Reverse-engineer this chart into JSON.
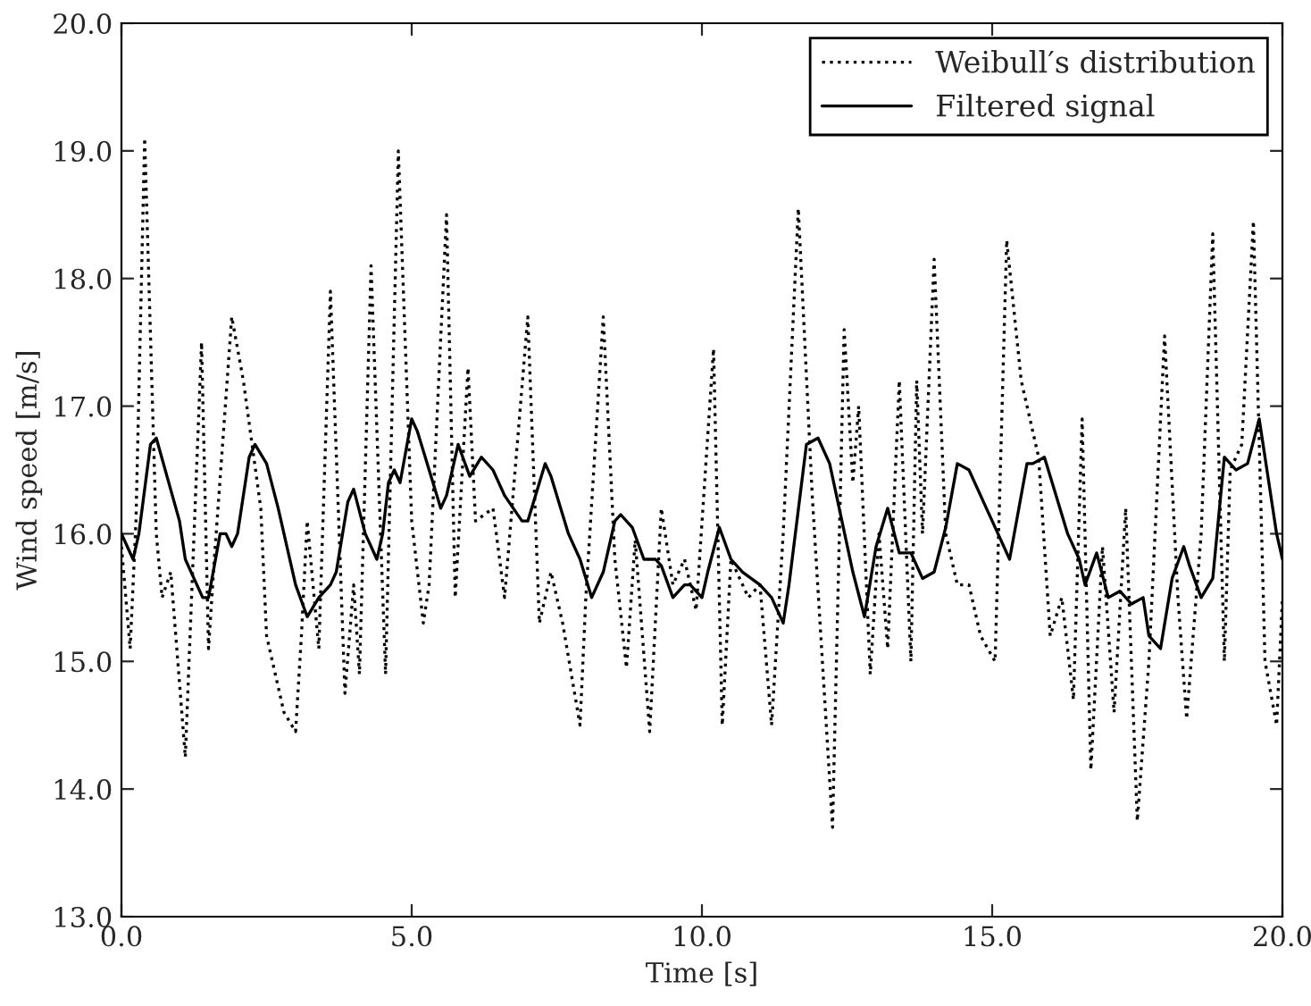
{
  "chart_data": {
    "type": "line",
    "xlabel": "Time [s]",
    "ylabel": "Wind speed [m/s]",
    "xlim": [
      0,
      20
    ],
    "ylim": [
      13,
      20
    ],
    "xticks": [
      {
        "value": 0,
        "label": "0.0"
      },
      {
        "value": 5,
        "label": "5.0"
      },
      {
        "value": 10,
        "label": "10.0"
      },
      {
        "value": 15,
        "label": "15.0"
      },
      {
        "value": 20,
        "label": "20.0"
      }
    ],
    "yticks": [
      {
        "value": 13,
        "label": "13.0"
      },
      {
        "value": 14,
        "label": "14.0"
      },
      {
        "value": 15,
        "label": "15.0"
      },
      {
        "value": 16,
        "label": "16.0"
      },
      {
        "value": 17,
        "label": "17.0"
      },
      {
        "value": 18,
        "label": "18.0"
      },
      {
        "value": 19,
        "label": "19.0"
      },
      {
        "value": 20,
        "label": "20.0"
      }
    ],
    "grid": false,
    "legend": "top right",
    "marker": "none",
    "series": [
      {
        "name": "Weibull′s distribution",
        "color": "#000000",
        "line_style": "dotted",
        "x": [
          0.0,
          0.15,
          0.25,
          0.4,
          0.6,
          0.7,
          0.85,
          1.1,
          1.38,
          1.5,
          1.6,
          1.9,
          2.1,
          2.4,
          2.5,
          2.8,
          3.0,
          3.1,
          3.2,
          3.4,
          3.6,
          3.85,
          4.0,
          4.1,
          4.3,
          4.55,
          4.77,
          5.0,
          5.2,
          5.3,
          5.6,
          5.75,
          5.97,
          6.1,
          6.4,
          6.6,
          7.0,
          7.2,
          7.4,
          7.6,
          7.9,
          8.0,
          8.3,
          8.5,
          8.7,
          8.85,
          9.1,
          9.3,
          9.5,
          9.7,
          9.9,
          10.2,
          10.35,
          10.5,
          10.8,
          11.0,
          11.2,
          11.4,
          11.66,
          11.9,
          12.25,
          12.45,
          12.6,
          12.7,
          12.9,
          13.05,
          13.2,
          13.4,
          13.6,
          13.7,
          13.8,
          14.0,
          14.2,
          14.4,
          14.6,
          14.8,
          15.05,
          15.25,
          15.5,
          15.8,
          16.0,
          16.2,
          16.4,
          16.55,
          16.7,
          16.9,
          17.1,
          17.3,
          17.5,
          17.7,
          17.97,
          18.2,
          18.35,
          18.6,
          18.8,
          19.0,
          19.1,
          19.3,
          19.5,
          19.7,
          19.9,
          20.0
        ],
        "values": [
          15.9,
          15.1,
          16.1,
          19.1,
          16.0,
          15.5,
          15.7,
          14.25,
          17.5,
          15.1,
          15.8,
          17.7,
          17.2,
          16.2,
          15.2,
          14.6,
          14.45,
          15.2,
          16.1,
          15.1,
          17.9,
          14.75,
          15.6,
          14.9,
          18.1,
          14.9,
          19.0,
          16.1,
          15.3,
          15.6,
          18.5,
          15.5,
          17.3,
          16.1,
          16.2,
          15.5,
          17.7,
          15.3,
          15.7,
          15.3,
          14.5,
          15.5,
          17.7,
          15.8,
          14.95,
          15.95,
          14.45,
          16.2,
          15.6,
          15.8,
          15.4,
          17.45,
          14.5,
          15.8,
          15.5,
          15.6,
          14.5,
          16.0,
          18.55,
          16.3,
          13.7,
          17.6,
          16.4,
          17.0,
          14.9,
          16.0,
          15.1,
          17.2,
          15.0,
          17.2,
          16.0,
          18.15,
          16.0,
          15.6,
          15.6,
          15.2,
          15.0,
          18.3,
          17.2,
          16.6,
          15.2,
          15.5,
          14.7,
          16.9,
          14.15,
          15.9,
          14.6,
          16.2,
          13.75,
          15.0,
          17.55,
          15.5,
          14.55,
          16.0,
          18.35,
          15.0,
          16.5,
          16.7,
          18.45,
          15.0,
          14.5,
          15.5
        ]
      },
      {
        "name": "Filtered signal",
        "color": "#000000",
        "line_style": "solid",
        "x": [
          0.0,
          0.2,
          0.3,
          0.5,
          0.6,
          1.0,
          1.1,
          1.4,
          1.5,
          1.7,
          1.8,
          1.9,
          2.0,
          2.2,
          2.3,
          2.5,
          2.7,
          3.0,
          3.2,
          3.4,
          3.6,
          3.7,
          3.9,
          4.0,
          4.2,
          4.4,
          4.5,
          4.6,
          4.7,
          4.8,
          5.0,
          5.1,
          5.3,
          5.5,
          5.6,
          5.8,
          6.0,
          6.2,
          6.4,
          6.6,
          6.9,
          7.0,
          7.3,
          7.4,
          7.7,
          7.9,
          8.1,
          8.3,
          8.5,
          8.6,
          8.8,
          9.0,
          9.2,
          9.3,
          9.5,
          9.7,
          9.8,
          10.0,
          10.1,
          10.3,
          10.5,
          10.7,
          11.0,
          11.2,
          11.4,
          11.5,
          11.8,
          12.0,
          12.2,
          12.6,
          12.8,
          13.0,
          13.2,
          13.4,
          13.6,
          13.8,
          14.0,
          14.2,
          14.4,
          14.6,
          14.9,
          15.1,
          15.3,
          15.5,
          15.6,
          15.7,
          15.9,
          16.1,
          16.3,
          16.5,
          16.6,
          16.8,
          17.0,
          17.2,
          17.4,
          17.6,
          17.7,
          17.9,
          18.1,
          18.3,
          18.4,
          18.6,
          18.8,
          19.0,
          19.2,
          19.4,
          19.6,
          19.9,
          20.0
        ],
        "values": [
          16.0,
          15.8,
          16.0,
          16.7,
          16.75,
          16.1,
          15.8,
          15.5,
          15.5,
          16.0,
          16.0,
          15.9,
          16.0,
          16.6,
          16.7,
          16.55,
          16.2,
          15.6,
          15.35,
          15.5,
          15.6,
          15.7,
          16.25,
          16.35,
          16.0,
          15.8,
          16.0,
          16.4,
          16.5,
          16.4,
          16.9,
          16.8,
          16.5,
          16.2,
          16.3,
          16.7,
          16.45,
          16.6,
          16.5,
          16.3,
          16.1,
          16.1,
          16.55,
          16.45,
          16.0,
          15.8,
          15.5,
          15.7,
          16.1,
          16.15,
          16.05,
          15.8,
          15.8,
          15.75,
          15.5,
          15.6,
          15.6,
          15.5,
          15.7,
          16.05,
          15.8,
          15.7,
          15.6,
          15.5,
          15.3,
          15.6,
          16.7,
          16.75,
          16.55,
          15.7,
          15.35,
          15.9,
          16.2,
          15.85,
          15.85,
          15.65,
          15.7,
          16.05,
          16.55,
          16.5,
          16.2,
          16.0,
          15.8,
          16.3,
          16.55,
          16.55,
          16.6,
          16.3,
          16.0,
          15.8,
          15.6,
          15.85,
          15.5,
          15.55,
          15.45,
          15.5,
          15.2,
          15.1,
          15.65,
          15.9,
          15.75,
          15.5,
          15.65,
          16.6,
          16.5,
          16.55,
          16.9,
          16.0,
          15.8
        ]
      }
    ]
  }
}
